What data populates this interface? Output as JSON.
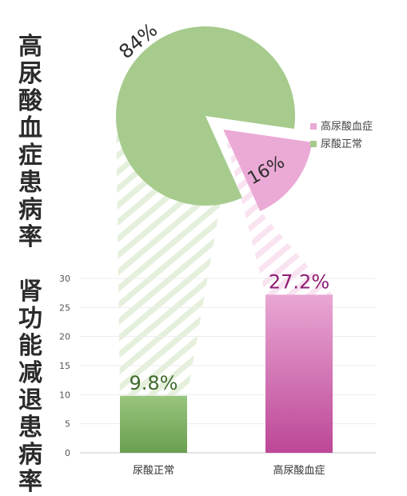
{
  "chart_data": [
    {
      "type": "pie",
      "title": "高尿酸血症患病率",
      "slices": [
        {
          "name": "尿酸正常",
          "value": 84,
          "label": "84%",
          "color": "#a6cb8d"
        },
        {
          "name": "高尿酸血症",
          "value": 16,
          "label": "16%",
          "color": "#ebaad6"
        }
      ],
      "legend": {
        "position": "right",
        "entries": [
          "高尿酸血症",
          "尿酸正常"
        ]
      }
    },
    {
      "type": "bar",
      "title": "肾功能减退患病率",
      "categories": [
        "尿酸正常",
        "高尿酸血症"
      ],
      "values": [
        9.8,
        27.2
      ],
      "value_labels": [
        "9.8%",
        "27.2%"
      ],
      "ylim": [
        0,
        30
      ],
      "yticks": [
        0,
        5,
        10,
        15,
        20,
        25,
        30
      ],
      "ytick_labels": [
        "0",
        "5",
        "10",
        "15",
        "20",
        "25",
        "30"
      ],
      "grid": true,
      "colors": [
        "#7fb063",
        "#c95aa6"
      ],
      "label_colors": [
        "#3f6b2c",
        "#8c1f74"
      ]
    }
  ]
}
